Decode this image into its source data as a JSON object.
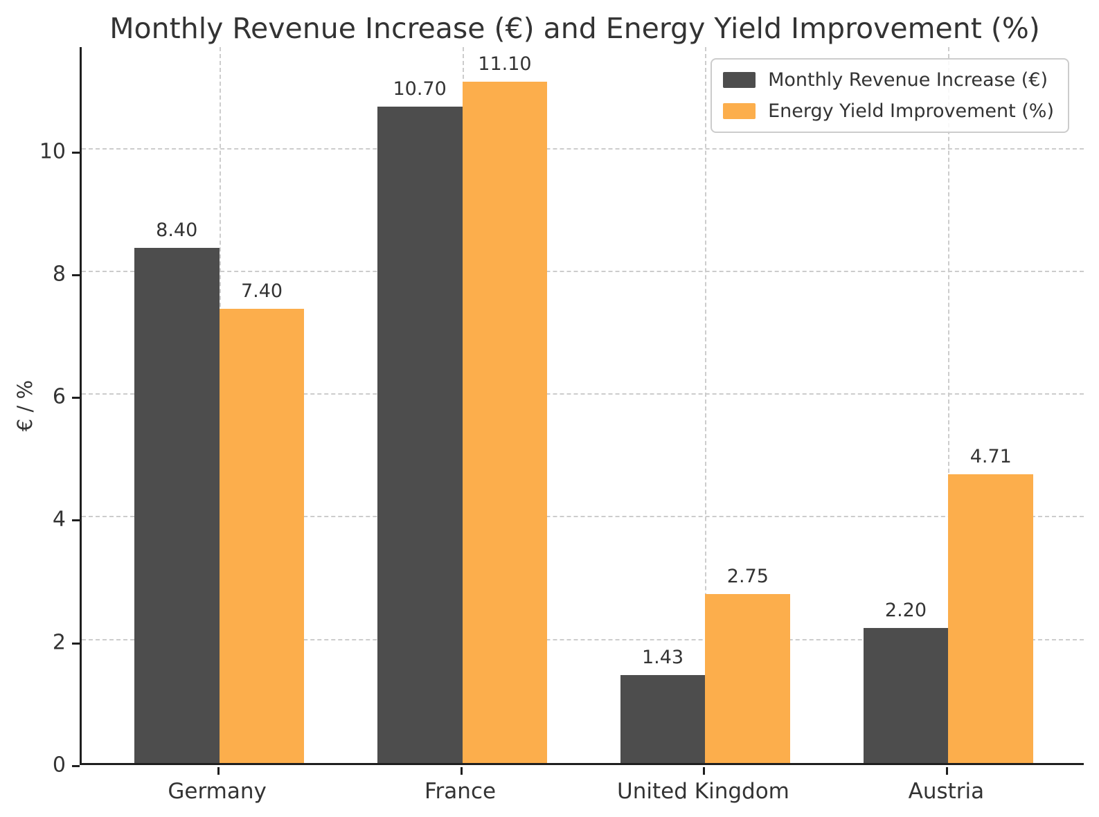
{
  "chart_data": {
    "type": "bar",
    "title": "Monthly Revenue Increase (€) and Energy Yield Improvement (%)",
    "ylabel": "€ / %",
    "xlabel": "",
    "categories": [
      "Germany",
      "France",
      "United Kingdom",
      "Austria"
    ],
    "series": [
      {
        "name": "Monthly Revenue Increase (€)",
        "color": "#4D4D4D",
        "values": [
          8.4,
          10.7,
          1.43,
          2.2
        ]
      },
      {
        "name": "Energy Yield Improvement (%)",
        "color": "#FCAE4C",
        "values": [
          7.4,
          11.1,
          2.75,
          4.71
        ]
      }
    ],
    "value_label_decimals": 2,
    "yticks": [
      0,
      2,
      4,
      6,
      8,
      10
    ],
    "ylim": [
      0,
      11.7
    ],
    "grid": true,
    "grid_color": "#cccccc",
    "legend_position": "upper right",
    "bar_width_fraction_of_slot": 0.35
  }
}
